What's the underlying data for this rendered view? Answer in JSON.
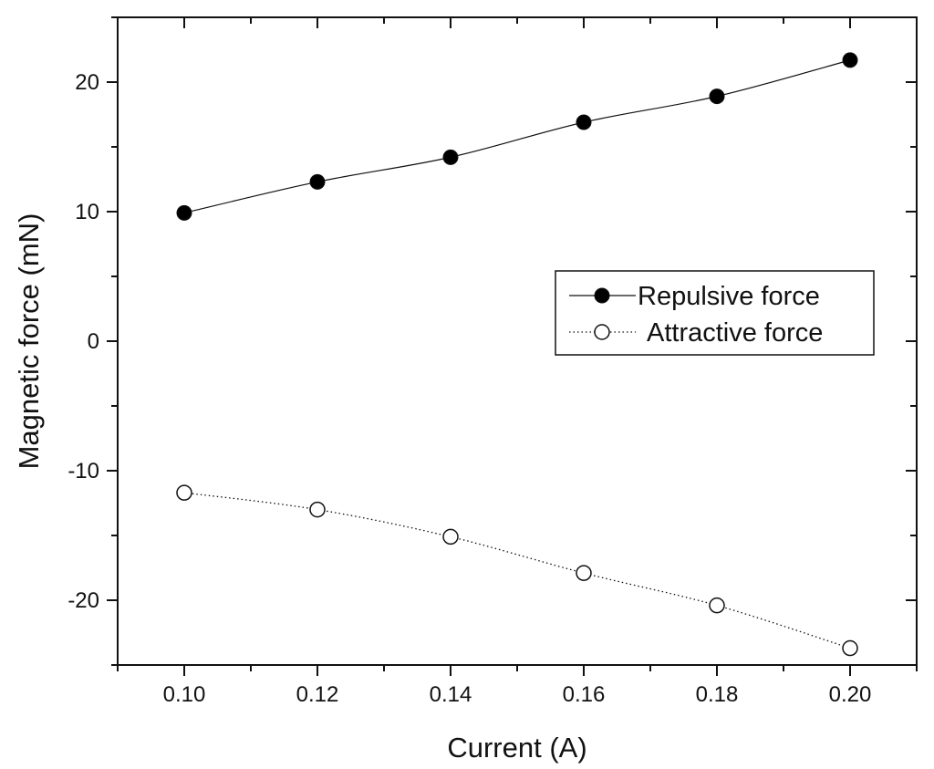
{
  "chart_data": {
    "type": "line",
    "title": "",
    "xlabel": "Current (A)",
    "ylabel": "Magnetic force (mN)",
    "xlim": [
      0.09,
      0.21
    ],
    "ylim": [
      -25,
      25
    ],
    "x_ticks": [
      0.1,
      0.12,
      0.14,
      0.16,
      0.18,
      0.2
    ],
    "x_tick_labels": [
      "0.10",
      "0.12",
      "0.14",
      "0.16",
      "0.18",
      "0.20"
    ],
    "x_minor_ticks": [
      0.09,
      0.11,
      0.13,
      0.15,
      0.17,
      0.19,
      0.21
    ],
    "y_ticks": [
      -20,
      -10,
      0,
      10,
      20
    ],
    "y_tick_labels": [
      "-20",
      "-10",
      "0",
      "10",
      "20"
    ],
    "y_minor_ticks": [
      -25,
      -15,
      -5,
      5,
      15,
      25
    ],
    "grid": false,
    "legend_position": "right-center",
    "x": [
      0.1,
      0.12,
      0.14,
      0.16,
      0.18,
      0.2
    ],
    "series": [
      {
        "name": "Repulsive force",
        "marker": "filled-circle",
        "line_style": "solid",
        "values": [
          9.9,
          12.3,
          14.2,
          16.9,
          18.9,
          21.7
        ]
      },
      {
        "name": "Attractive force",
        "marker": "open-circle",
        "line_style": "dotted",
        "values": [
          -11.7,
          -13.0,
          -15.1,
          -17.9,
          -20.4,
          -23.7
        ]
      }
    ]
  },
  "colors": {
    "axis": "#111111",
    "marker_fill": "#000000",
    "open_marker_fill": "#ffffff",
    "background": "#ffffff"
  }
}
